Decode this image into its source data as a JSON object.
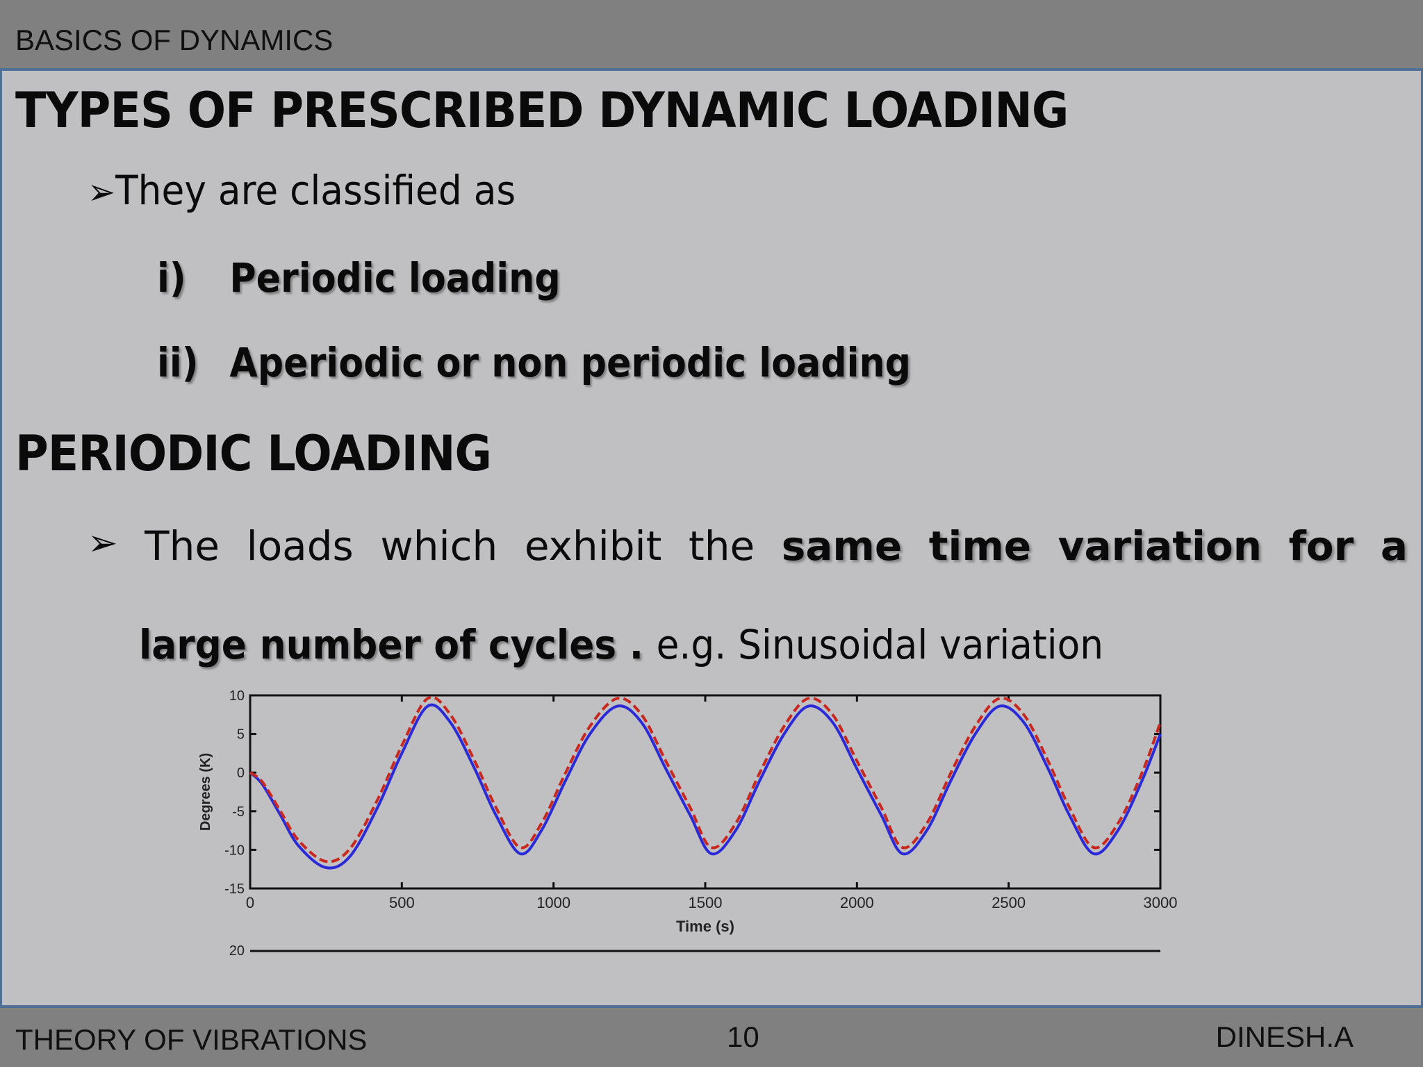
{
  "header": {
    "title": "BASICS OF DYNAMICS"
  },
  "footer": {
    "course": "THEORY OF VIBRATIONS",
    "page": "10",
    "author": "DINESH.A"
  },
  "slide": {
    "title": "TYPES OF PRESCRIBED DYNAMIC LOADING",
    "intro_bullet": "They are classified as",
    "items": [
      {
        "num": "i)",
        "text": "Periodic loading"
      },
      {
        "num": "ii)",
        "text": "Aperiodic or non periodic loading"
      }
    ],
    "section_title": "PERIODIC LOADING",
    "paragraph": {
      "plain1": "The loads which exhibit the",
      "bold": "same time variation for a large number of cycles .",
      "plain2": "e.g. Sinusoidal variation"
    },
    "bullet_glyph": "➢"
  },
  "chart_data": {
    "type": "line",
    "xlabel": "Time (s)",
    "ylabel": "Degrees (K)",
    "xlim": [
      0,
      3000
    ],
    "ylim": [
      -15,
      10
    ],
    "x_ticks": [
      "0",
      "500",
      "1000",
      "1500",
      "2000",
      "2500",
      "3000"
    ],
    "y_ticks": [
      "10",
      "5",
      "0",
      "-5",
      "-10",
      "-15"
    ],
    "extra_tick_label": "20",
    "series": [
      {
        "style": "solid",
        "color": "#2a2ad8",
        "x": [
          0,
          40,
          100,
          160,
          250,
          330,
          420,
          500,
          585,
          660,
          740,
          810,
          890,
          960,
          1040,
          1120,
          1210,
          1290,
          1370,
          1450,
          1520,
          1600,
          1680,
          1760,
          1840,
          1920,
          2000,
          2080,
          2150,
          2230,
          2310,
          2390,
          2470,
          2550,
          2630,
          2700,
          2780,
          2860,
          2940,
          3000
        ],
        "y": [
          0,
          -1.5,
          -5.5,
          -9.5,
          -12.3,
          -10.8,
          -4.5,
          2.5,
          8.6,
          6.5,
          0.5,
          -5.5,
          -10.5,
          -7.5,
          -1.0,
          5.0,
          8.6,
          6.5,
          0.5,
          -5.5,
          -10.5,
          -7.5,
          -1.0,
          5.0,
          8.6,
          6.5,
          0.5,
          -5.5,
          -10.5,
          -7.5,
          -1.0,
          5.0,
          8.6,
          6.5,
          0.5,
          -5.5,
          -10.5,
          -7.5,
          -1.0,
          5.0
        ]
      },
      {
        "style": "dashed",
        "color": "#c8281e",
        "x": [
          0,
          40,
          100,
          160,
          250,
          330,
          420,
          500,
          585,
          660,
          740,
          810,
          890,
          960,
          1040,
          1120,
          1210,
          1290,
          1370,
          1450,
          1520,
          1600,
          1680,
          1760,
          1840,
          1920,
          2000,
          2080,
          2150,
          2230,
          2310,
          2390,
          2470,
          2550,
          2630,
          2700,
          2780,
          2860,
          2940,
          3000
        ],
        "y": [
          0,
          -1.2,
          -5.0,
          -8.8,
          -11.5,
          -9.8,
          -3.5,
          3.5,
          9.6,
          7.5,
          1.5,
          -4.5,
          -9.7,
          -6.6,
          0.0,
          6.0,
          9.6,
          7.5,
          1.5,
          -4.5,
          -9.7,
          -6.6,
          0.0,
          6.0,
          9.6,
          7.5,
          1.5,
          -4.5,
          -9.7,
          -6.6,
          0.0,
          6.0,
          9.6,
          7.5,
          1.5,
          -4.5,
          -9.7,
          -6.6,
          0.0,
          6.5
        ]
      }
    ]
  }
}
